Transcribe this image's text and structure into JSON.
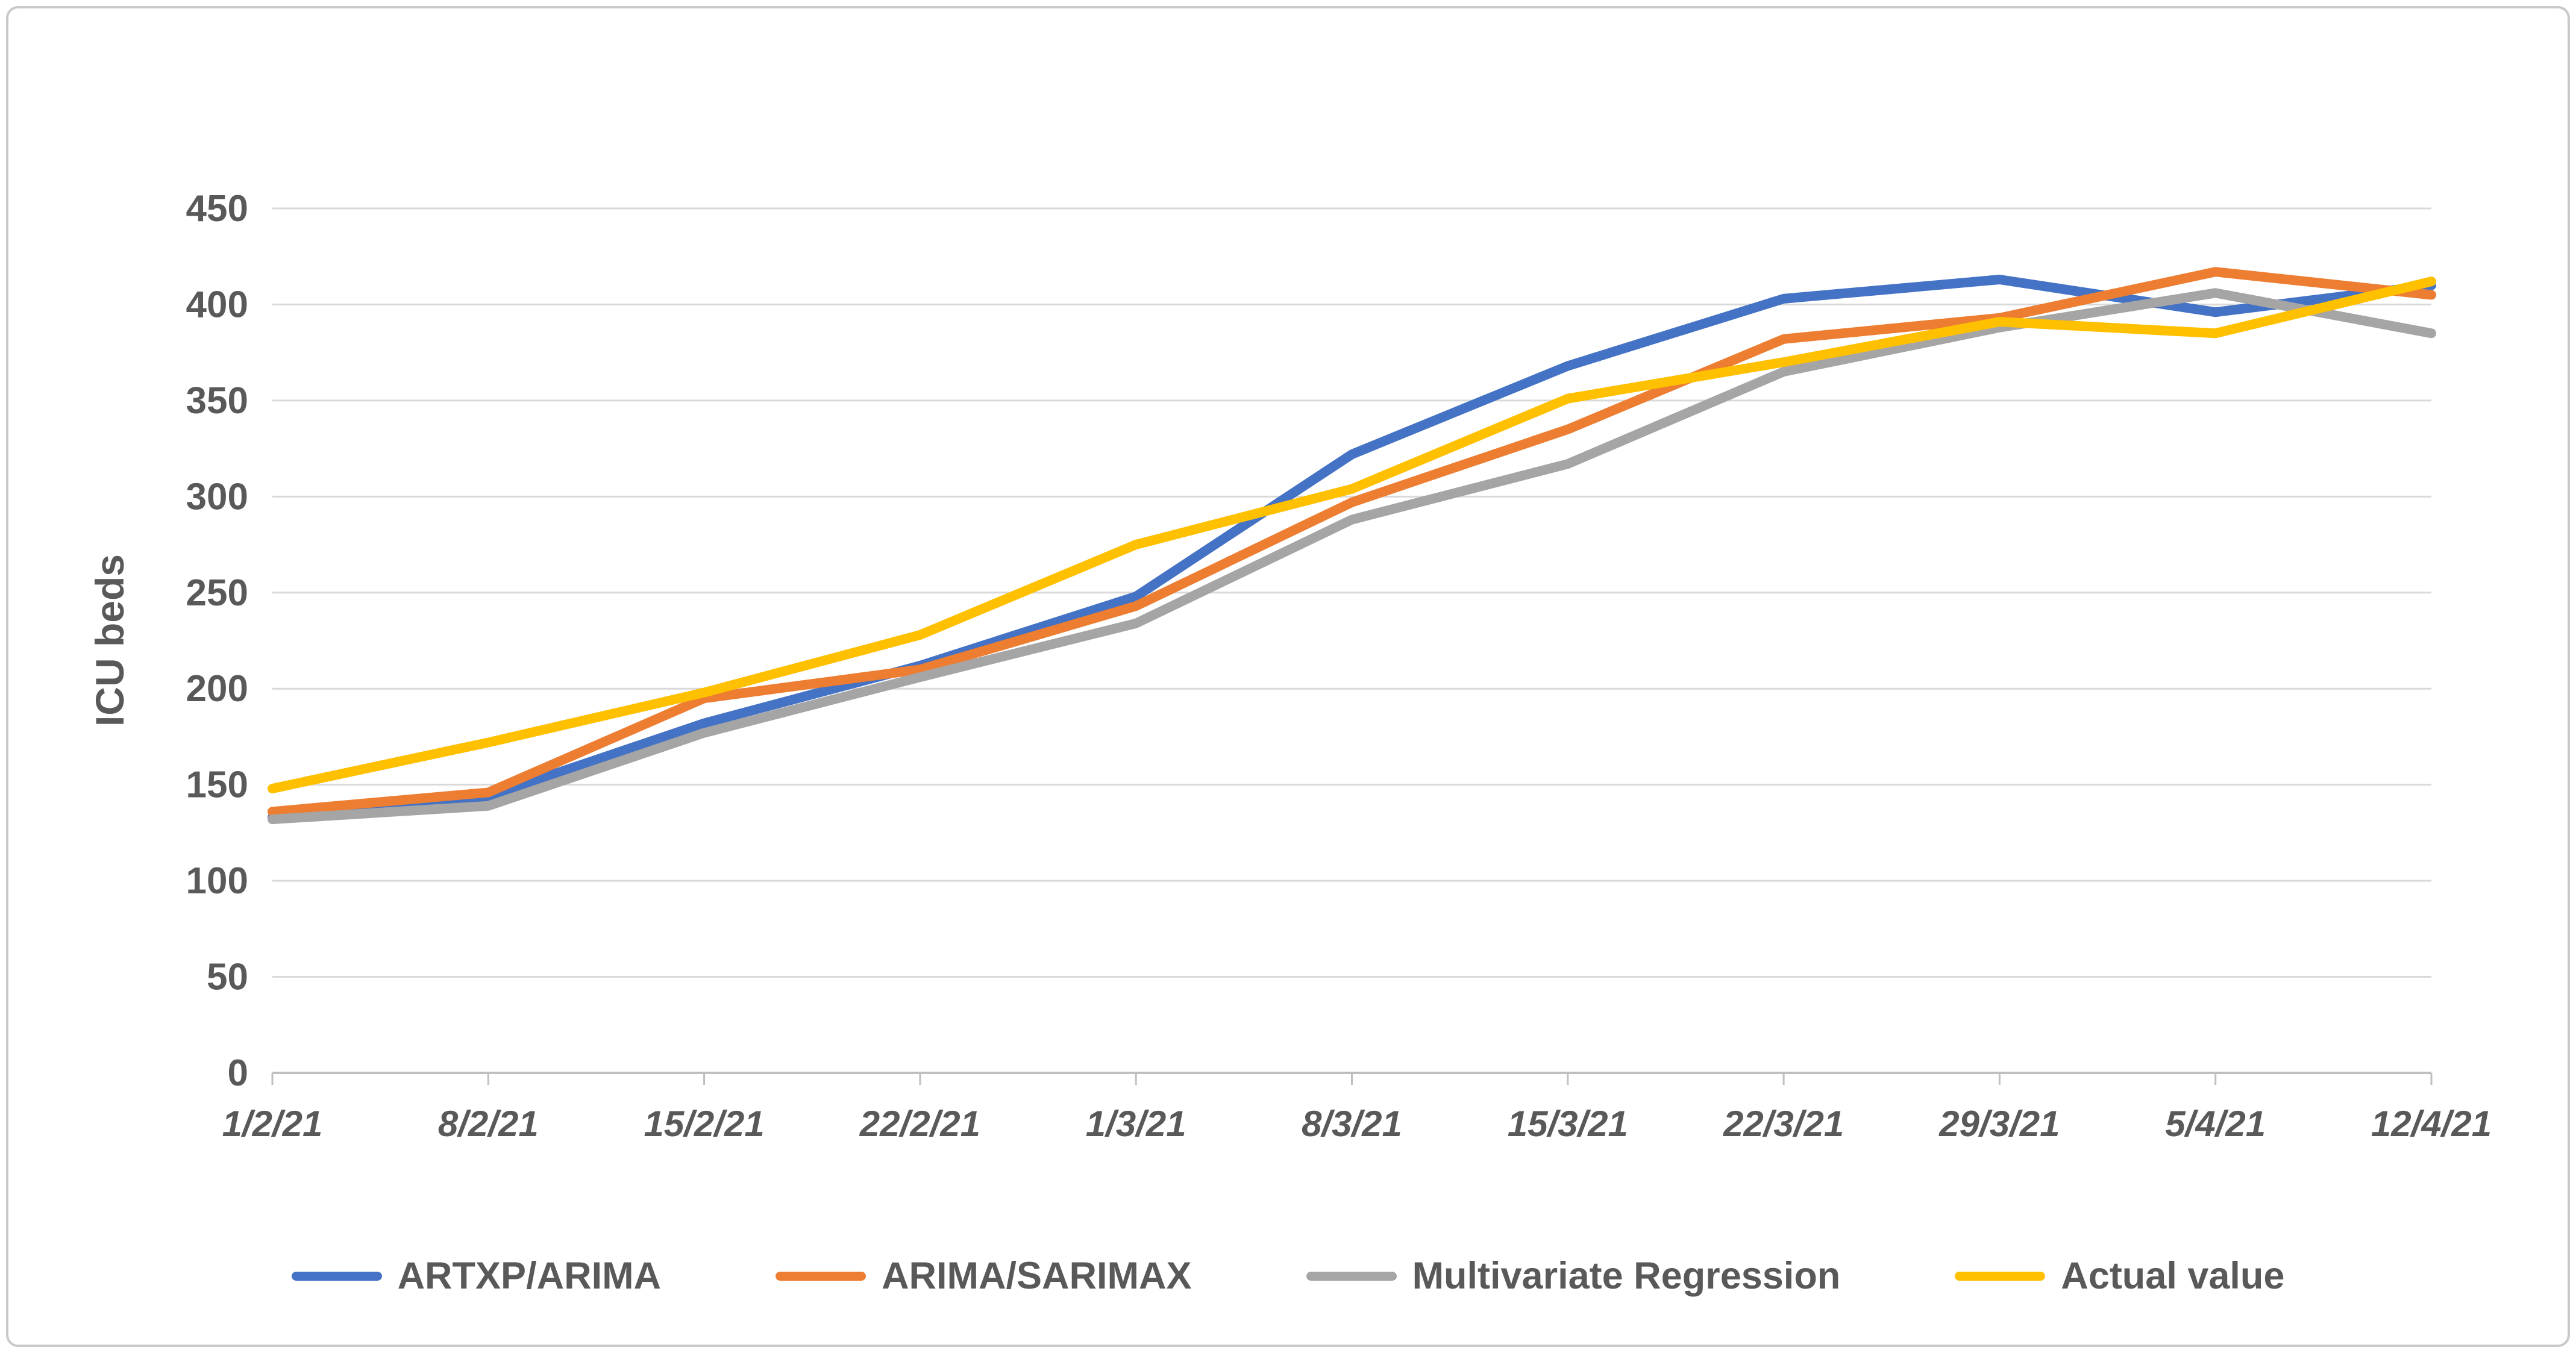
{
  "chart_data": {
    "type": "line",
    "title": "",
    "xlabel": "",
    "ylabel": "ICU beds",
    "categories": [
      "1/2/21",
      "8/2/21",
      "15/2/21",
      "22/2/21",
      "1/3/21",
      "8/3/21",
      "15/3/21",
      "22/3/21",
      "29/3/21",
      "5/4/21",
      "12/4/21"
    ],
    "series": [
      {
        "name": "ARTXP/ARIMA",
        "color": "#4472C4",
        "values": [
          133,
          144,
          182,
          212,
          248,
          322,
          368,
          403,
          413,
          396,
          410
        ]
      },
      {
        "name": "ARIMA/SARIMAX",
        "color": "#ED7D31",
        "values": [
          136,
          146,
          195,
          210,
          243,
          297,
          335,
          382,
          393,
          417,
          405
        ]
      },
      {
        "name": "Multivariate Regression",
        "color": "#A5A5A5",
        "values": [
          132,
          139,
          177,
          206,
          234,
          288,
          317,
          365,
          388,
          406,
          385
        ]
      },
      {
        "name": "Actual value",
        "color": "#FFC000",
        "values": [
          148,
          172,
          198,
          228,
          275,
          304,
          351,
          370,
          391,
          385,
          412
        ]
      }
    ],
    "ylim": [
      0,
      450
    ],
    "ytick_step": 50,
    "grid": true,
    "legend_position": "bottom",
    "gridline_color": "#D9D9D9",
    "axis_line_color": "#BFBFBF",
    "label_color": "#595959"
  },
  "frame": {
    "background": "#FFFFFF",
    "border_color": "#C9C9C9"
  }
}
